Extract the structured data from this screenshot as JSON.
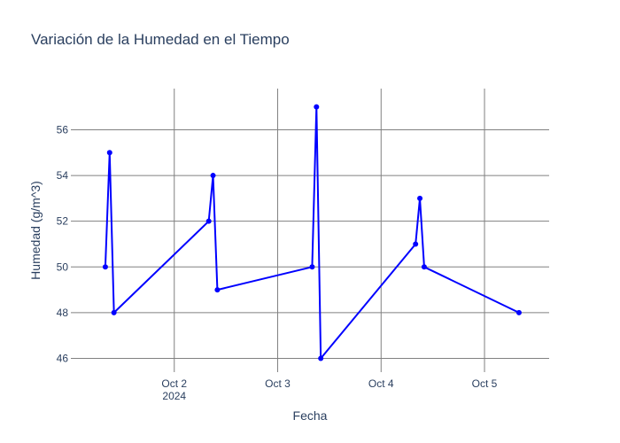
{
  "chart_data": {
    "type": "line",
    "title": "Variación de la Humedad en el Tiempo",
    "xlabel": "Fecha",
    "ylabel": "Humedad (g/m^3)",
    "xlim": [
      "2024-10-01 00:00",
      "2024-10-05 15:00"
    ],
    "ylim": [
      45.4,
      57.8
    ],
    "grid": true,
    "x_ticks": [
      {
        "value": "2024-10-02 00:00",
        "label": "Oct 2",
        "sublabel": "2024"
      },
      {
        "value": "2024-10-03 00:00",
        "label": "Oct 3",
        "sublabel": ""
      },
      {
        "value": "2024-10-04 00:00",
        "label": "Oct 4",
        "sublabel": ""
      },
      {
        "value": "2024-10-05 00:00",
        "label": "Oct 5",
        "sublabel": ""
      }
    ],
    "y_ticks": [
      46,
      48,
      50,
      52,
      54,
      56
    ],
    "series": [
      {
        "color": "#0000ff",
        "x": [
          "2024-10-01 08:00",
          "2024-10-01 09:00",
          "2024-10-01 10:00",
          "2024-10-02 08:00",
          "2024-10-02 09:00",
          "2024-10-02 10:00",
          "2024-10-03 08:00",
          "2024-10-03 09:00",
          "2024-10-03 10:00",
          "2024-10-04 08:00",
          "2024-10-04 09:00",
          "2024-10-04 10:00",
          "2024-10-05 08:00"
        ],
        "y": [
          50,
          55,
          48,
          52,
          54,
          49,
          50,
          57,
          46,
          51,
          53,
          50,
          48
        ]
      }
    ]
  }
}
